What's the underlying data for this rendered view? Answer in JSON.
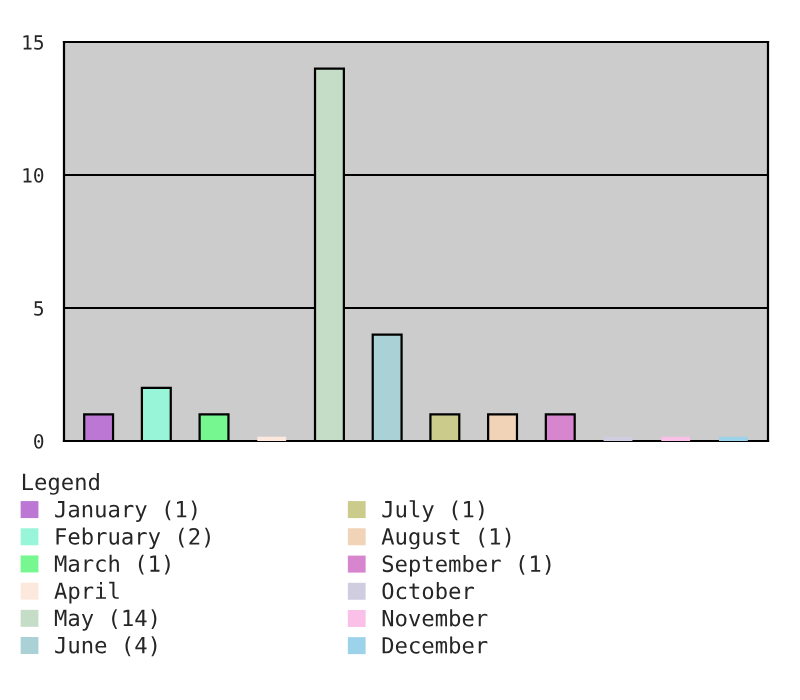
{
  "chart_data": {
    "type": "bar",
    "categories": [
      null,
      null,
      null,
      null,
      null,
      null,
      null,
      null,
      null,
      null,
      null,
      null
    ],
    "legend_title": "Legend",
    "legend": "bottom",
    "grid": "y",
    "ylim": [
      0,
      15
    ],
    "yticks": [
      0,
      5,
      10,
      15
    ],
    "series": [
      {
        "name": "January (1)",
        "color": "#bb77d3",
        "values": [
          1,
          null,
          null,
          null,
          null,
          null,
          null,
          null,
          null,
          null,
          null,
          null
        ]
      },
      {
        "name": "February (2)",
        "color": "#99f5d8",
        "values": [
          null,
          2,
          null,
          null,
          null,
          null,
          null,
          null,
          null,
          null,
          null,
          null
        ]
      },
      {
        "name": "March (1)",
        "color": "#77f78f",
        "values": [
          null,
          null,
          1,
          null,
          null,
          null,
          null,
          null,
          null,
          null,
          null,
          null
        ]
      },
      {
        "name": "April",
        "color": "#fde8dd",
        "values": [
          null,
          null,
          null,
          0,
          null,
          null,
          null,
          null,
          null,
          null,
          null,
          null
        ]
      },
      {
        "name": "May (14)",
        "color": "#c5ddc6",
        "values": [
          null,
          null,
          null,
          null,
          14,
          null,
          null,
          null,
          null,
          null,
          null,
          null
        ]
      },
      {
        "name": "June (4)",
        "color": "#aad2d6",
        "values": [
          null,
          null,
          null,
          null,
          null,
          4,
          null,
          null,
          null,
          null,
          null,
          null
        ]
      },
      {
        "name": "July (1)",
        "color": "#cbcb8c",
        "values": [
          null,
          null,
          null,
          null,
          null,
          null,
          1,
          null,
          null,
          null,
          null,
          null
        ]
      },
      {
        "name": "August (1)",
        "color": "#f1d3b7",
        "values": [
          null,
          null,
          null,
          null,
          null,
          null,
          null,
          1,
          null,
          null,
          null,
          null
        ]
      },
      {
        "name": "September (1)",
        "color": "#d885cf",
        "values": [
          null,
          null,
          null,
          null,
          null,
          null,
          null,
          null,
          1,
          null,
          null,
          null
        ]
      },
      {
        "name": "October",
        "color": "#d0cde0",
        "values": [
          null,
          null,
          null,
          null,
          null,
          null,
          null,
          null,
          null,
          0,
          null,
          null
        ]
      },
      {
        "name": "November",
        "color": "#fbc0e7",
        "values": [
          null,
          null,
          null,
          null,
          null,
          null,
          null,
          null,
          null,
          null,
          0,
          null
        ]
      },
      {
        "name": "December",
        "color": "#9dd3ea",
        "values": [
          null,
          null,
          null,
          null,
          null,
          null,
          null,
          null,
          null,
          null,
          null,
          0
        ]
      }
    ]
  }
}
